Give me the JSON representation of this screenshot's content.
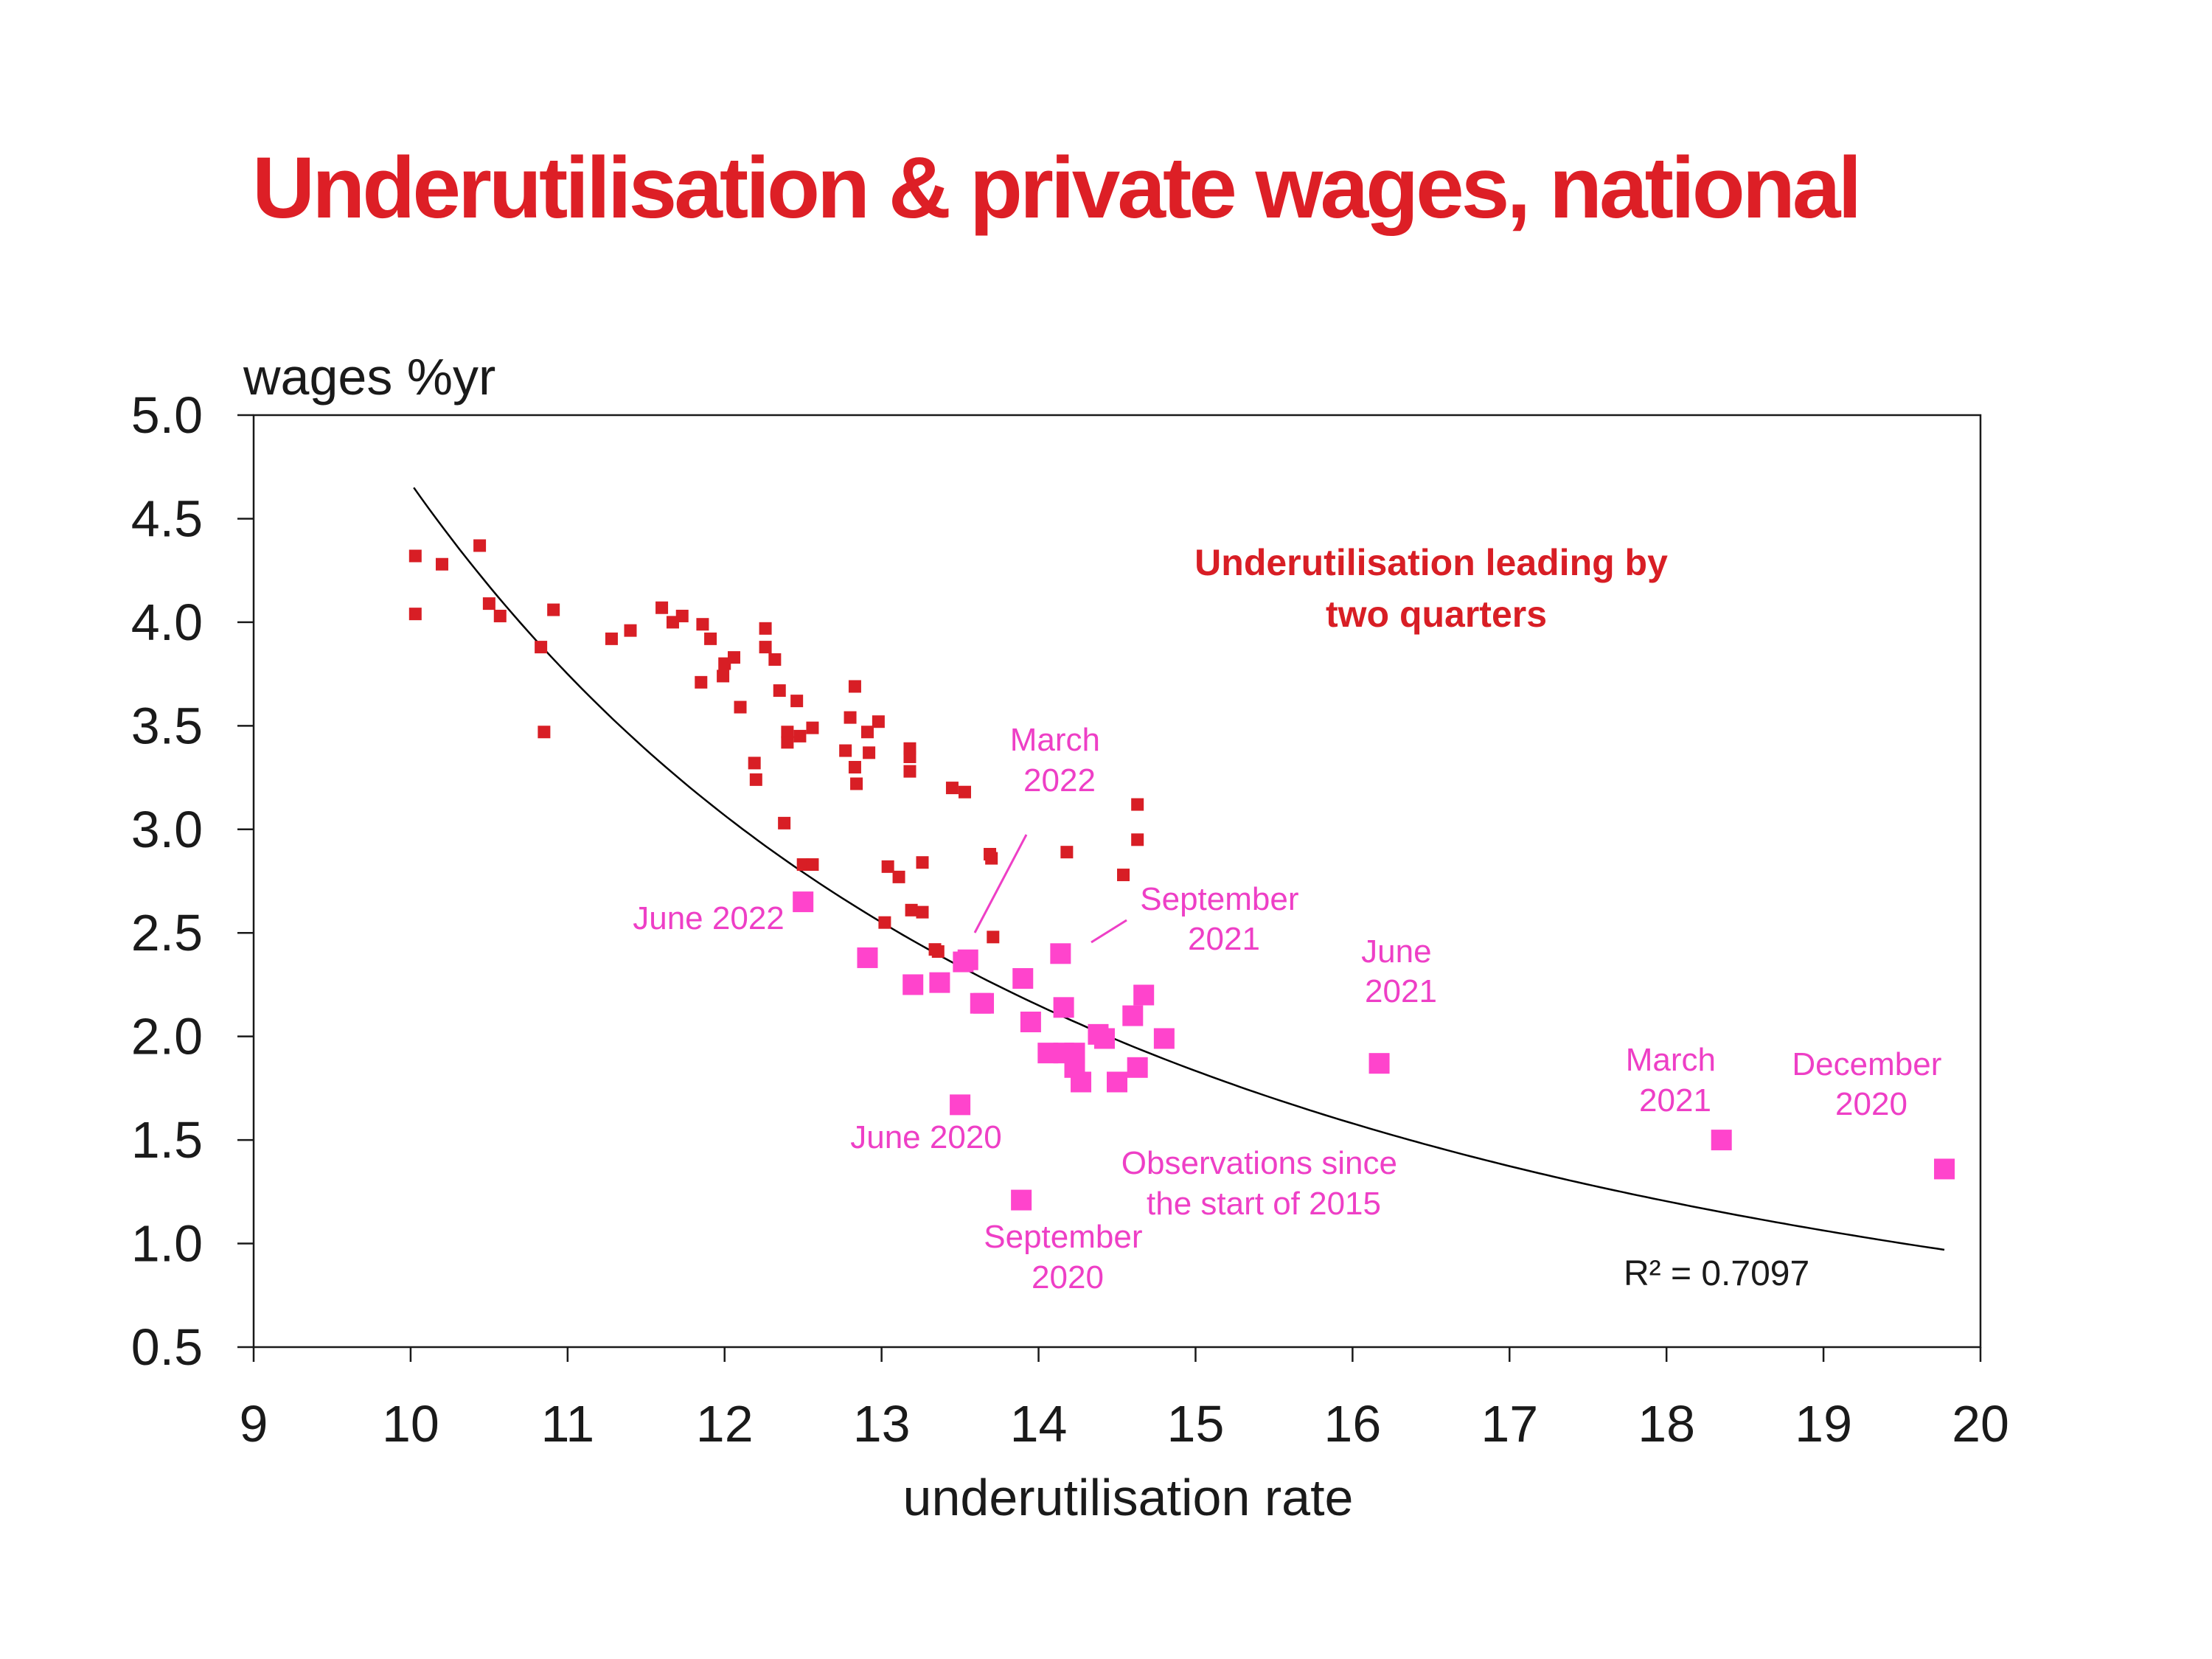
{
  "chart_data": {
    "type": "scatter",
    "title": "Underutilisation & private wages, national",
    "xlabel": "underutilisation rate",
    "ylabel": "wages %yr",
    "xlim": [
      9,
      20
    ],
    "ylim": [
      0.5,
      5.0
    ],
    "x_ticks": [
      "9",
      "10",
      "11",
      "12",
      "13",
      "14",
      "15",
      "16",
      "17",
      "18",
      "19",
      "20"
    ],
    "y_ticks": [
      "0.5",
      "1.0",
      "1.5",
      "2.0",
      "2.5",
      "3.0",
      "3.5",
      "4.0",
      "4.5",
      "5.0"
    ],
    "grid": false,
    "colors": {
      "title": "#dd1f26",
      "series_1": "#d81e25",
      "series_2": "#ff44cc",
      "trend": "#000000"
    },
    "series": [
      {
        "marker": "square-small",
        "points": [
          [
            10.03,
            4.32
          ],
          [
            10.03,
            4.04
          ],
          [
            10.2,
            4.28
          ],
          [
            10.44,
            4.37
          ],
          [
            10.5,
            4.09
          ],
          [
            10.57,
            4.03
          ],
          [
            10.83,
            3.88
          ],
          [
            10.85,
            3.47
          ],
          [
            10.91,
            4.06
          ],
          [
            11.28,
            3.92
          ],
          [
            11.4,
            3.96
          ],
          [
            11.6,
            4.07
          ],
          [
            11.67,
            4.0
          ],
          [
            11.73,
            4.03
          ],
          [
            11.85,
            3.71
          ],
          [
            11.86,
            3.99
          ],
          [
            11.91,
            3.92
          ],
          [
            11.99,
            3.74
          ],
          [
            12.0,
            3.8
          ],
          [
            12.06,
            3.83
          ],
          [
            12.1,
            3.59
          ],
          [
            12.19,
            3.32
          ],
          [
            12.2,
            3.24
          ],
          [
            12.26,
            3.97
          ],
          [
            12.26,
            3.88
          ],
          [
            12.32,
            3.82
          ],
          [
            12.35,
            3.67
          ],
          [
            12.38,
            3.03
          ],
          [
            12.4,
            3.47
          ],
          [
            12.4,
            3.42
          ],
          [
            12.46,
            3.62
          ],
          [
            12.48,
            3.45
          ],
          [
            12.5,
            2.83
          ],
          [
            12.56,
            2.83
          ],
          [
            12.56,
            3.49
          ],
          [
            12.77,
            3.38
          ],
          [
            12.8,
            3.54
          ],
          [
            12.83,
            3.69
          ],
          [
            12.83,
            3.3
          ],
          [
            12.84,
            3.22
          ],
          [
            12.91,
            3.47
          ],
          [
            12.92,
            3.37
          ],
          [
            12.98,
            3.52
          ],
          [
            13.02,
            2.55
          ],
          [
            13.04,
            2.82
          ],
          [
            13.11,
            2.77
          ],
          [
            13.18,
            3.39
          ],
          [
            13.18,
            3.35
          ],
          [
            13.18,
            3.28
          ],
          [
            13.19,
            2.61
          ],
          [
            13.26,
            2.84
          ],
          [
            13.26,
            2.6
          ],
          [
            13.34,
            2.42
          ],
          [
            13.36,
            2.41
          ],
          [
            13.45,
            3.2
          ],
          [
            13.53,
            3.18
          ],
          [
            13.69,
            2.88
          ],
          [
            13.7,
            2.86
          ],
          [
            13.71,
            2.48
          ],
          [
            14.18,
            2.89
          ],
          [
            14.54,
            2.78
          ],
          [
            14.63,
            2.95
          ],
          [
            14.63,
            3.12
          ]
        ]
      },
      {
        "marker": "square-large",
        "points": [
          [
            12.5,
            2.65
          ],
          [
            12.91,
            2.38
          ],
          [
            13.2,
            2.25
          ],
          [
            13.37,
            2.26
          ],
          [
            13.5,
            1.67
          ],
          [
            13.52,
            2.36
          ],
          [
            13.55,
            2.37
          ],
          [
            13.63,
            2.16
          ],
          [
            13.65,
            2.16
          ],
          [
            13.89,
            1.21
          ],
          [
            13.9,
            2.28
          ],
          [
            13.95,
            2.07
          ],
          [
            14.06,
            1.92
          ],
          [
            14.14,
            2.4
          ],
          [
            14.16,
            2.14
          ],
          [
            14.16,
            1.92
          ],
          [
            14.23,
            1.92
          ],
          [
            14.23,
            1.85
          ],
          [
            14.27,
            1.78
          ],
          [
            14.38,
            2.01
          ],
          [
            14.42,
            1.99
          ],
          [
            14.5,
            1.78
          ],
          [
            14.6,
            2.1
          ],
          [
            14.63,
            1.85
          ],
          [
            14.67,
            2.2
          ],
          [
            14.8,
            1.99
          ],
          [
            16.17,
            1.87
          ],
          [
            18.35,
            1.5
          ],
          [
            19.77,
            1.36
          ]
        ]
      }
    ],
    "trendline": {
      "type": "power",
      "x_range": [
        10.02,
        19.77
      ],
      "r_squared_label": "R² = 0.7097"
    },
    "annotations": {
      "subtitle_note": [
        "Underutilisation leading by",
        "two quarters"
      ],
      "march_2022": [
        "March",
        "2022"
      ],
      "september_2021": [
        "September",
        "2021"
      ],
      "june_2022": [
        "June 2022"
      ],
      "june_2021": [
        "June",
        "2021"
      ],
      "march_2021": [
        "March",
        "2021"
      ],
      "december_2020": [
        "December",
        "2020"
      ],
      "june_2020": [
        "June 2020"
      ],
      "observations": [
        "Observations since",
        "the start of 2015"
      ],
      "september_2020": [
        "September",
        "2020"
      ]
    }
  }
}
